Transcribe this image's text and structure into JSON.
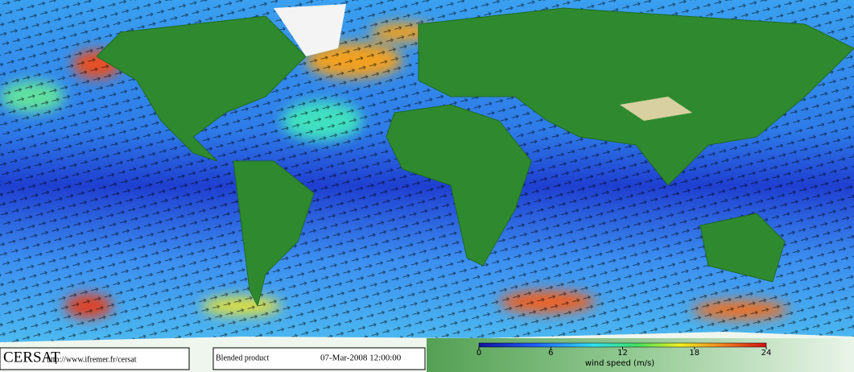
{
  "footer": {
    "logo": "CERSAT",
    "url": "http://www.ifremer.fr/cersat",
    "product": "Blended product",
    "timestamp": "07-Mar-2008 12:00:00"
  },
  "legend": {
    "title": "wind speed (m/s)",
    "range": [
      0,
      24
    ],
    "ticks": [
      0,
      6,
      12,
      18,
      24
    ]
  }
}
